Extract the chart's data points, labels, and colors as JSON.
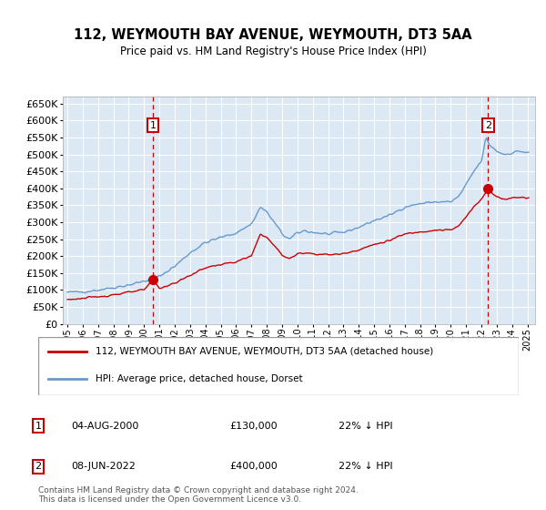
{
  "title": "112, WEYMOUTH BAY AVENUE, WEYMOUTH, DT3 5AA",
  "subtitle": "Price paid vs. HM Land Registry's House Price Index (HPI)",
  "legend_line1": "112, WEYMOUTH BAY AVENUE, WEYMOUTH, DT3 5AA (detached house)",
  "legend_line2": "HPI: Average price, detached house, Dorset",
  "annotation1_date": "04-AUG-2000",
  "annotation1_price": "£130,000",
  "annotation1_hpi": "22% ↓ HPI",
  "annotation2_date": "08-JUN-2022",
  "annotation2_price": "£400,000",
  "annotation2_hpi": "22% ↓ HPI",
  "footer": "Contains HM Land Registry data © Crown copyright and database right 2024.\nThis data is licensed under the Open Government Licence v3.0.",
  "sale1_x": 2000.583,
  "sale1_y": 130000,
  "sale2_x": 2022.44,
  "sale2_y": 400000,
  "ylim": [
    0,
    670000
  ],
  "xlim": [
    1994.7,
    2025.5
  ],
  "yticks": [
    0,
    50000,
    100000,
    150000,
    200000,
    250000,
    300000,
    350000,
    400000,
    450000,
    500000,
    550000,
    600000,
    650000
  ],
  "plot_bg": "#dce9f5",
  "red_color": "#cc0000",
  "blue_color": "#6699cc",
  "grid_color": "#ffffff"
}
